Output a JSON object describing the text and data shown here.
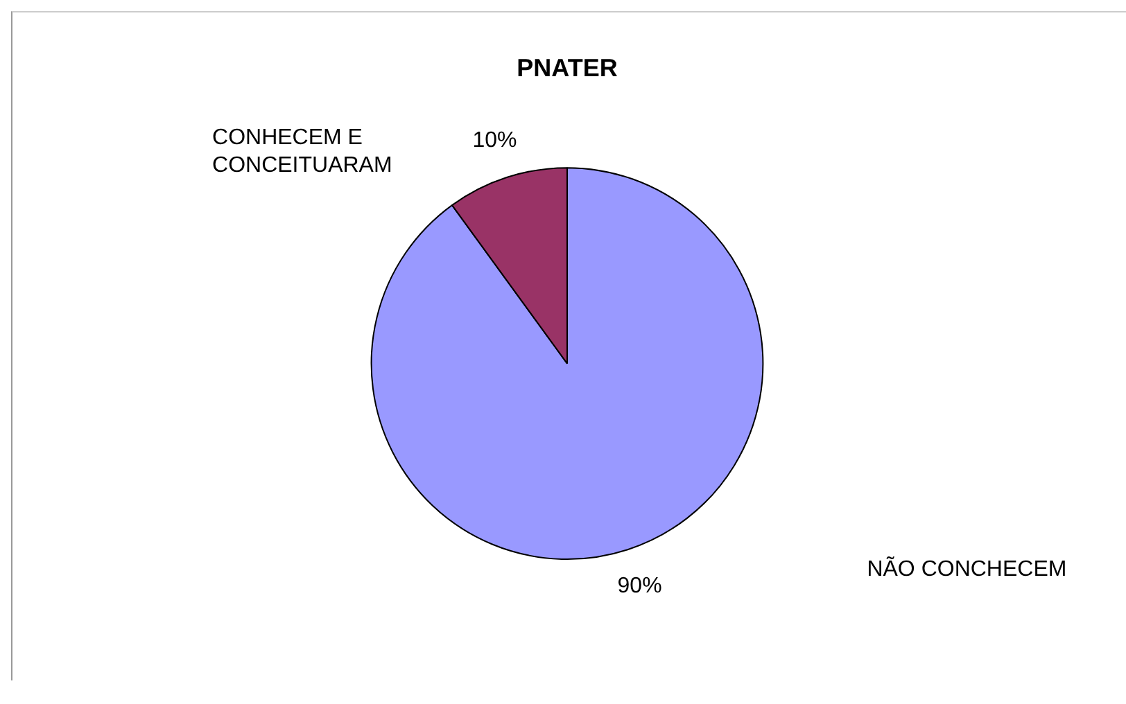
{
  "chart_data": {
    "type": "pie",
    "title": "PNATER",
    "categories": [
      "NÃO CONCHECEM",
      "CONHECEM E CONCEITUARAM"
    ],
    "values": [
      90,
      10
    ],
    "colors": [
      "#9999ff",
      "#993366"
    ],
    "value_labels": [
      "90%",
      "10%"
    ],
    "legend": false
  }
}
